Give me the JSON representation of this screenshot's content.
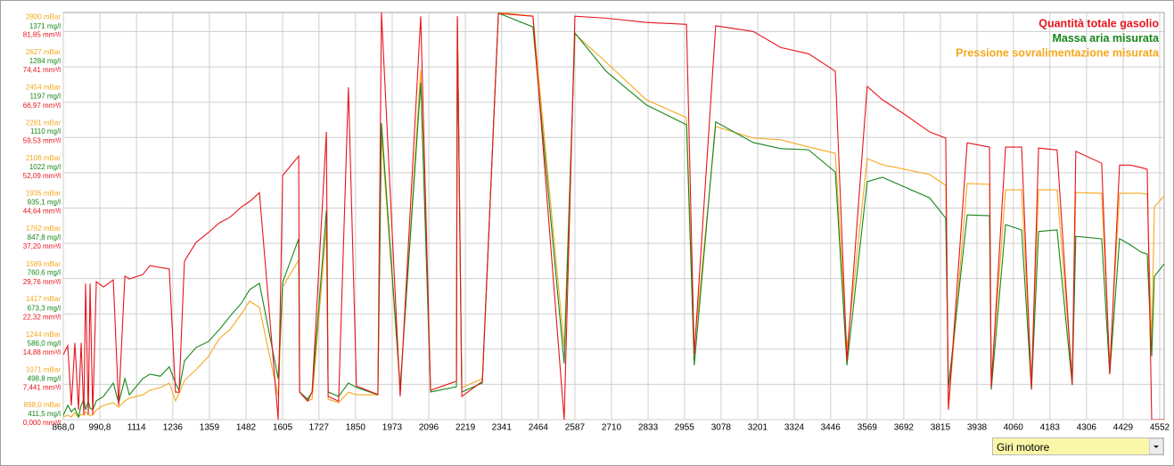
{
  "chart_data": {
    "type": "line",
    "xlabel": "Giri motore",
    "legend": "top-right",
    "grid": true,
    "xlim": [
      868,
      4567
    ],
    "xticks": [
      {
        "value": 868,
        "label": "868,0"
      },
      {
        "value": 990.8,
        "label": "990,8"
      },
      1114,
      1236,
      1359,
      1482,
      1605,
      1727,
      1850,
      1973,
      2096,
      2219,
      2341,
      2464,
      2587,
      2710,
      2833,
      2955,
      3078,
      3201,
      3324,
      3446,
      3569,
      3692,
      3815,
      3938,
      4060,
      4183,
      4306,
      4429,
      4552
    ],
    "ylim": [
      0,
      85.9
    ],
    "yticks": [
      {
        "value": 0,
        "label": "0,000 mm³/l"
      },
      {
        "value": 7.441,
        "label": "7,441 mm³/l"
      },
      {
        "value": 14.88,
        "label": "14,88 mm³/l"
      },
      {
        "value": 22.32,
        "label": "22,32 mm³/l"
      },
      {
        "value": 29.76,
        "label": "29,76 mm³/l"
      },
      {
        "value": 37.2,
        "label": "37,20 mm³/l"
      },
      {
        "value": 44.64,
        "label": "44,64 mm³/l"
      },
      {
        "value": 52.09,
        "label": "52,09 mm³/l"
      },
      {
        "value": 59.53,
        "label": "59,53 mm³/l"
      },
      {
        "value": 66.97,
        "label": "66,97 mm³/l"
      },
      {
        "value": 74.41,
        "label": "74,41 mm³/l"
      },
      {
        "value": 81.85,
        "label": "81,85 mm³/l"
      }
    ],
    "y2lim": [
      411.5,
      1418.7
    ],
    "y2ticks": [
      {
        "value": 411.5,
        "label": "411,5 mg/l"
      },
      {
        "value": 498.8,
        "label": "498,8 mg/l"
      },
      {
        "value": 586.0,
        "label": "586,0 mg/l"
      },
      {
        "value": 673.3,
        "label": "673,3 mg/l"
      },
      {
        "value": 760.6,
        "label": "760,6 mg/l"
      },
      {
        "value": 847.8,
        "label": "847,8 mg/l"
      },
      {
        "value": 935.1,
        "label": "935,1 mg/l"
      },
      {
        "value": 1022,
        "label": "1022 mg/l"
      },
      {
        "value": 1110,
        "label": "1110 mg/l"
      },
      {
        "value": 1197,
        "label": "1197 mg/l"
      },
      {
        "value": 1284,
        "label": "1284 mg/l"
      },
      {
        "value": 1371,
        "label": "1371 mg/l"
      }
    ],
    "y3lim": [
      898,
      2893
    ],
    "y3ticks": [
      {
        "value": 898.0,
        "label": "898,0 mBar"
      },
      {
        "value": 1071,
        "label": "1071 mBar"
      },
      {
        "value": 1244,
        "label": "1244 mBar"
      },
      {
        "value": 1417,
        "label": "1417 mBar"
      },
      {
        "value": 1589,
        "label": "1589 mBar"
      },
      {
        "value": 1762,
        "label": "1762 mBar"
      },
      {
        "value": 1935,
        "label": "1935 mBar"
      },
      {
        "value": 2108,
        "label": "2108 mBar"
      },
      {
        "value": 2281,
        "label": "2281 mBar"
      },
      {
        "value": 2454,
        "label": "2454 mBar"
      },
      {
        "value": 2627,
        "label": "2627 mBar"
      },
      {
        "value": 2800,
        "label": "2800 mBar"
      }
    ],
    "x": [
      868,
      883,
      895,
      907,
      919,
      928,
      937,
      943,
      952,
      958,
      967,
      979,
      1003,
      1036,
      1054,
      1075,
      1090,
      1135,
      1159,
      1194,
      1224,
      1245,
      1257,
      1275,
      1314,
      1356,
      1392,
      1428,
      1467,
      1494,
      1527,
      1590,
      1605,
      1659,
      1662,
      1689,
      1704,
      1752,
      1758,
      1793,
      1826,
      1853,
      1925,
      1937,
      2000,
      2069,
      2102,
      2189,
      2192,
      2207,
      2276,
      2330,
      2446,
      2551,
      2587,
      2692,
      2827,
      2962,
      2988,
      3060,
      3186,
      3279,
      3372,
      3462,
      3501,
      3569,
      3620,
      3695,
      3779,
      3833,
      3842,
      3905,
      3980,
      3986,
      4034,
      4088,
      4121,
      4145,
      4207,
      4258,
      4270,
      4357,
      4384,
      4417,
      4453,
      4489,
      4510,
      4525,
      4534,
      4567
    ],
    "series": [
      {
        "name": "Quantità totale gasolio",
        "color": "#e8141c",
        "values": [
          13.7,
          15.6,
          3.0,
          16.2,
          2.1,
          16.2,
          1.1,
          28.7,
          1.1,
          28.7,
          1.1,
          29.1,
          28.0,
          29.5,
          3.0,
          30.3,
          29.7,
          30.6,
          32.5,
          32.1,
          31.8,
          5.8,
          5.8,
          33.4,
          37.4,
          39.5,
          41.5,
          42.7,
          44.9,
          46.0,
          47.9,
          0,
          51.5,
          55.6,
          5.8,
          3.9,
          5.8,
          60.7,
          4.9,
          3.9,
          70.1,
          7.1,
          5.3,
          85.9,
          4.9,
          85.1,
          6.2,
          8.1,
          85.1,
          4.9,
          8.1,
          85.7,
          85.1,
          0,
          85.1,
          84.7,
          83.8,
          83.4,
          13.7,
          83.1,
          81.9,
          78.5,
          77.2,
          73.5,
          12.4,
          70.3,
          67.5,
          64.4,
          60.7,
          59.4,
          2.1,
          58.4,
          57.5,
          6.8,
          57.5,
          57.5,
          6.4,
          57.3,
          56.9,
          7.5,
          56.6,
          54.1,
          9.6,
          53.7,
          53.7,
          53.2,
          52.8,
          0,
          0,
          0
        ]
      },
      {
        "name": "Massa aria misurata",
        "color": "#17871a",
        "axis": "y2",
        "values": [
          422,
          447,
          431,
          440,
          418,
          447,
          462,
          436,
          458,
          440,
          436,
          458,
          469,
          502,
          453,
          513,
          473,
          513,
          524,
          519,
          542,
          502,
          484,
          557,
          590,
          605,
          634,
          667,
          700,
          733,
          749,
          513,
          751,
          859,
          480,
          462,
          480,
          929,
          480,
          469,
          502,
          491,
          473,
          1145,
          491,
          1245,
          480,
          493,
          1405,
          480,
          502,
          1417,
          1383,
          550,
          1368,
          1273,
          1190,
          1141,
          546,
          1148,
          1097,
          1082,
          1079,
          1024,
          546,
          1000,
          1011,
          987,
          960,
          910,
          491,
          918,
          916,
          486,
          894,
          881,
          486,
          877,
          881,
          497,
          865,
          859,
          524,
          859,
          844,
          826,
          821,
          568,
          766,
          797
        ]
      },
      {
        "name": "Pressione sovralimentazione misurata",
        "color": "#f5a81e",
        "axis": "y3",
        "values": [
          911,
          920,
          911,
          933,
          911,
          924,
          920,
          937,
          920,
          920,
          920,
          946,
          968,
          981,
          959,
          990,
          1003,
          1020,
          1042,
          1055,
          1077,
          990,
          1025,
          1090,
          1143,
          1208,
          1295,
          1339,
          1418,
          1479,
          1448,
          1012,
          1549,
          1680,
          1033,
          990,
          998,
          1841,
          998,
          981,
          1033,
          1020,
          1020,
          2299,
          1042,
          2614,
          1042,
          1086,
          2876,
          1055,
          1099,
          2893,
          2876,
          1252,
          2788,
          2649,
          2465,
          2378,
          1243,
          2334,
          2278,
          2269,
          2234,
          2203,
          1243,
          2177,
          2147,
          2125,
          2099,
          2046,
          955,
          2055,
          2051,
          1086,
          2024,
          2024,
          1086,
          2024,
          2024,
          1099,
          2011,
          2007,
          1164,
          2007,
          2007,
          2007,
          2003,
          1273,
          1942,
          1994
        ]
      }
    ]
  }
}
